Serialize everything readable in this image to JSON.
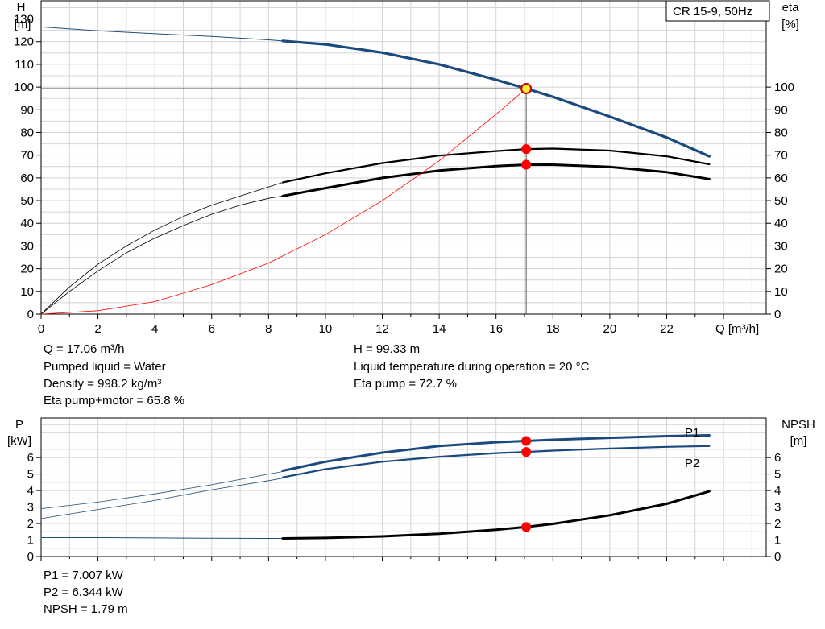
{
  "chart_data": [
    {
      "type": "line",
      "legend_box": "CR 15-9, 50Hz",
      "xlabel": "Q [m³/h]",
      "y_left_label": "H",
      "y_left_unit": "[m]",
      "y_right_label": "eta",
      "y_right_unit": "[%]",
      "xlim": [
        0,
        25.5
      ],
      "x_ticks": [
        0,
        2,
        4,
        6,
        8,
        10,
        12,
        14,
        16,
        18,
        20,
        22
      ],
      "ylim_left": [
        0,
        138
      ],
      "y_left_ticks": [
        0,
        10,
        20,
        30,
        40,
        50,
        60,
        70,
        80,
        90,
        100,
        110,
        120,
        130
      ],
      "ylim_right": [
        0,
        138
      ],
      "y_right_ticks": [
        0,
        10,
        20,
        30,
        40,
        50,
        60,
        70,
        80,
        90,
        100
      ],
      "grid": true,
      "operating_point": {
        "x": 17.06,
        "y": 99.33
      },
      "series": [
        {
          "key": "h_thin",
          "color": "#1f4e79",
          "x": [
            0,
            2,
            4,
            6,
            8,
            8.5
          ],
          "y": [
            126.5,
            124.8,
            123.5,
            122.3,
            120.8,
            120.3
          ]
        },
        {
          "key": "h_thick",
          "color": "#1a4a7e",
          "x": [
            8.5,
            10,
            12,
            14,
            16,
            17.06,
            18,
            20,
            22,
            23.5
          ],
          "y": [
            120.3,
            118.8,
            115.2,
            110.0,
            103.2,
            99.33,
            95.7,
            87.0,
            77.8,
            69.5
          ]
        },
        {
          "key": "eta_pump_thin",
          "color": "#000000",
          "x": [
            0,
            1,
            2,
            3,
            4,
            5,
            6,
            7,
            8,
            8.5
          ],
          "y": [
            0,
            12,
            22,
            30,
            37,
            43,
            48,
            52,
            56,
            58
          ]
        },
        {
          "key": "eta_pump_thick",
          "color": "#000000",
          "x": [
            8.5,
            10,
            12,
            14,
            16,
            17.06,
            18,
            20,
            22,
            23.5
          ],
          "y": [
            58,
            62,
            66.5,
            69.8,
            71.8,
            72.7,
            72.9,
            72.0,
            69.5,
            66
          ]
        },
        {
          "key": "eta_motor_thin",
          "color": "#000000",
          "x": [
            0,
            1,
            2,
            3,
            4,
            5,
            6,
            7,
            8,
            8.5
          ],
          "y": [
            0,
            10,
            19,
            27,
            33.5,
            39,
            44,
            48,
            51,
            52
          ]
        },
        {
          "key": "eta_motor_thick",
          "color": "#000000",
          "x": [
            8.5,
            10,
            12,
            14,
            16,
            17.06,
            18,
            20,
            22,
            23.5
          ],
          "y": [
            52,
            55.5,
            60,
            63.2,
            65.2,
            65.8,
            65.8,
            64.8,
            62.5,
            59.5
          ]
        },
        {
          "key": "system_curve",
          "color": "#ff0000",
          "x": [
            0,
            2,
            4,
            6,
            8,
            10,
            12,
            14,
            16,
            17.06
          ],
          "y": [
            0,
            1.5,
            5.5,
            13,
            22.5,
            35,
            50,
            67.5,
            88,
            99.33
          ]
        }
      ],
      "markers": [
        {
          "x": 17.06,
          "y": 72.7
        },
        {
          "x": 17.06,
          "y": 65.8
        }
      ]
    },
    {
      "type": "line",
      "y_left_label": "P",
      "y_left_unit": "[kW]",
      "y_right_label": "NPSH",
      "y_right_unit": "[m]",
      "xlim": [
        0,
        25.5
      ],
      "ylim_left": [
        0,
        8.4
      ],
      "y_left_ticks": [
        0,
        1,
        2,
        3,
        4,
        5,
        6
      ],
      "ylim_right": [
        0,
        8.4
      ],
      "y_right_ticks": [
        0,
        1,
        2,
        3,
        4,
        5,
        6
      ],
      "grid": true,
      "series": [
        {
          "key": "p1_thin",
          "color": "#1f4e79",
          "x": [
            0,
            2,
            4,
            6,
            8,
            8.5
          ],
          "y": [
            2.9,
            3.3,
            3.8,
            4.35,
            5.0,
            5.15
          ]
        },
        {
          "key": "p1_thick",
          "color": "#1a4a7e",
          "name": "P1",
          "x": [
            8.5,
            10,
            12,
            14,
            16,
            17.06,
            18,
            20,
            22,
            23.5
          ],
          "y": [
            5.2,
            5.75,
            6.3,
            6.7,
            6.93,
            7.007,
            7.08,
            7.2,
            7.3,
            7.35
          ]
        },
        {
          "key": "p2_thin",
          "color": "#1f4e79",
          "x": [
            0,
            2,
            4,
            6,
            8,
            8.5
          ],
          "y": [
            2.3,
            2.85,
            3.4,
            4.05,
            4.6,
            4.75
          ]
        },
        {
          "key": "p2_thick",
          "color": "#1a4a7e",
          "name": "P2",
          "x": [
            8.5,
            10,
            12,
            14,
            16,
            17.06,
            18,
            20,
            22,
            23.5
          ],
          "y": [
            4.8,
            5.3,
            5.75,
            6.05,
            6.27,
            6.344,
            6.42,
            6.55,
            6.65,
            6.7
          ]
        },
        {
          "key": "npsh_thin",
          "color": "#1f4e79",
          "x": [
            0,
            2,
            4,
            6,
            8,
            8.5
          ],
          "y": [
            1.15,
            1.15,
            1.13,
            1.11,
            1.1,
            1.1
          ]
        },
        {
          "key": "npsh_thick",
          "color": "#000000",
          "x": [
            8.5,
            10,
            12,
            14,
            16,
            17.06,
            18,
            20,
            22,
            23.5
          ],
          "y": [
            1.1,
            1.13,
            1.22,
            1.38,
            1.62,
            1.79,
            1.98,
            2.5,
            3.2,
            3.95
          ]
        }
      ],
      "markers": [
        {
          "x": 17.06,
          "y": 7.007
        },
        {
          "x": 17.06,
          "y": 6.344
        },
        {
          "x": 17.06,
          "y": 1.79
        }
      ]
    }
  ],
  "info_top_left": [
    "Q = 17.06 m³/h",
    "Pumped liquid = Water",
    "Density = 998.2 kg/m³",
    "Eta pump+motor = 65.8 %"
  ],
  "info_top_right": [
    "H = 99.33 m",
    "Liquid temperature during operation = 20 °C",
    "Eta pump = 72.7 %"
  ],
  "info_bottom": [
    "P1 = 7.007 kW",
    "P2 = 6.344 kW",
    "NPSH = 1.79 m"
  ]
}
